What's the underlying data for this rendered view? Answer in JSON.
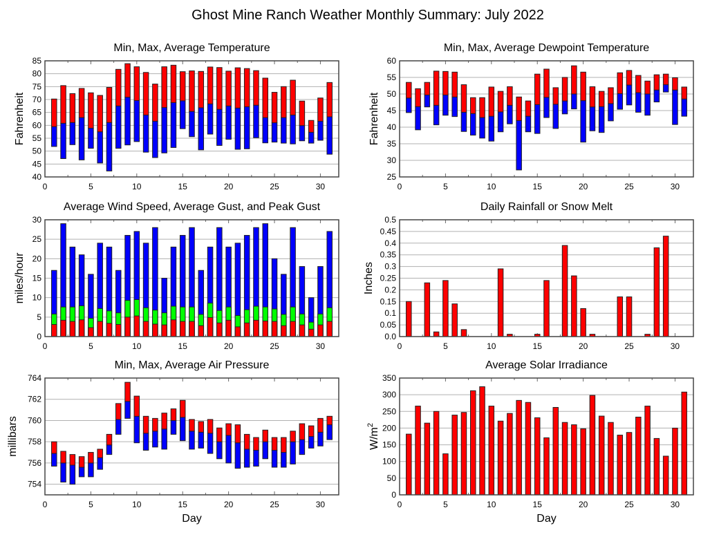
{
  "page": {
    "title": "Ghost Mine Ranch Weather Monthly Summary: July 2022"
  },
  "colors": {
    "red": "#ff0000",
    "blue": "#0000ff",
    "green": "#00ff00"
  },
  "chart_data": [
    {
      "id": "temperature",
      "type": "bar",
      "subtype": "floating-range",
      "title": "Min, Max, Average Temperature",
      "xlabel": "",
      "ylabel": "Fahrenheit",
      "xlim": [
        0,
        32
      ],
      "ylim": [
        40,
        85
      ],
      "xticks": [
        0,
        5,
        10,
        15,
        20,
        25,
        30
      ],
      "yticks": [
        40,
        45,
        50,
        55,
        60,
        65,
        70,
        75,
        80,
        85
      ],
      "grid": true,
      "x": [
        1,
        2,
        3,
        4,
        5,
        6,
        7,
        8,
        9,
        10,
        11,
        12,
        13,
        14,
        15,
        16,
        17,
        18,
        19,
        20,
        21,
        22,
        23,
        24,
        25,
        26,
        27,
        28,
        29,
        30,
        31
      ],
      "series": [
        {
          "name": "Min",
          "values": [
            51.8,
            47.1,
            52.5,
            46.6,
            51.1,
            45.4,
            42.3,
            51.1,
            52.4,
            53.7,
            49.6,
            47.5,
            49.3,
            51.4,
            58.7,
            55.6,
            50.5,
            56.6,
            52.2,
            54.6,
            50.7,
            50.9,
            55.2,
            53.2,
            53.5,
            53.1,
            52.8,
            54.0,
            53.1,
            54.2,
            48.8
          ]
        },
        {
          "name": "Average",
          "values": [
            59.5,
            60.8,
            61.1,
            63.0,
            58.9,
            57.5,
            61.1,
            67.5,
            70.9,
            69.6,
            64.0,
            61.6,
            66.9,
            68.8,
            69.5,
            65.4,
            66.8,
            68.3,
            66.2,
            67.5,
            66.7,
            67.2,
            67.8,
            63.0,
            61.0,
            63.0,
            64.0,
            59.9,
            57.3,
            61.6,
            63.3
          ]
        },
        {
          "name": "Max",
          "values": [
            70.2,
            75.4,
            72.3,
            74.3,
            72.6,
            71.6,
            74.7,
            81.7,
            83.9,
            82.7,
            80.5,
            76.0,
            82.7,
            83.3,
            80.8,
            81.1,
            80.9,
            82.6,
            82.4,
            81.0,
            82.3,
            82.0,
            81.2,
            78.3,
            72.8,
            75.0,
            77.5,
            69.4,
            61.9,
            70.6,
            76.6
          ]
        }
      ]
    },
    {
      "id": "dewpoint",
      "type": "bar",
      "subtype": "floating-range",
      "title": "Min, Max, Average Dewpoint Temperature",
      "xlabel": "",
      "ylabel": "Fahrenheit",
      "xlim": [
        0,
        32
      ],
      "ylim": [
        25,
        60
      ],
      "xticks": [
        0,
        5,
        10,
        15,
        20,
        25,
        30
      ],
      "yticks": [
        25,
        30,
        35,
        40,
        45,
        50,
        55,
        60
      ],
      "grid": true,
      "x": [
        1,
        2,
        3,
        4,
        5,
        6,
        7,
        8,
        9,
        10,
        11,
        12,
        13,
        14,
        15,
        16,
        17,
        18,
        19,
        20,
        21,
        22,
        23,
        24,
        25,
        26,
        27,
        28,
        29,
        30,
        31
      ],
      "series": [
        {
          "name": "Min",
          "values": [
            44.4,
            39.2,
            46.1,
            40.7,
            43.6,
            43.2,
            38.7,
            37.6,
            36.7,
            35.8,
            38.6,
            41.0,
            27.1,
            38.6,
            38.1,
            42.9,
            39.6,
            44.0,
            45.5,
            35.5,
            38.9,
            38.4,
            41.9,
            45.4,
            46.7,
            44.5,
            43.6,
            47.6,
            50.6,
            40.8,
            43.3
          ]
        },
        {
          "name": "Average",
          "values": [
            48.8,
            46.2,
            49.7,
            46.6,
            49.7,
            49.1,
            44.5,
            44.1,
            42.9,
            43.3,
            44.6,
            46.6,
            42.0,
            43.3,
            46.8,
            49.0,
            46.9,
            47.9,
            50.0,
            48.0,
            46.1,
            46.2,
            47.1,
            50.1,
            52.7,
            50.4,
            50.0,
            51.2,
            52.8,
            51.2,
            48.5
          ]
        },
        {
          "name": "Max",
          "values": [
            53.5,
            51.6,
            53.5,
            56.9,
            56.8,
            56.6,
            52.8,
            48.9,
            48.9,
            52.1,
            50.8,
            52.2,
            49.1,
            47.9,
            56.0,
            57.5,
            51.9,
            55.0,
            58.5,
            56.6,
            52.2,
            50.8,
            51.9,
            56.4,
            57.1,
            55.6,
            53.9,
            55.8,
            56.0,
            54.9,
            52.1
          ]
        }
      ]
    },
    {
      "id": "wind",
      "type": "bar",
      "subtype": "overlaid",
      "title": "Average Wind Speed, Average Gust, and Peak Gust",
      "xlabel": "",
      "ylabel": "miles/hour",
      "xlim": [
        0,
        32
      ],
      "ylim": [
        0,
        30
      ],
      "xticks": [
        0,
        5,
        10,
        15,
        20,
        25,
        30
      ],
      "yticks": [
        0,
        5,
        10,
        15,
        20,
        25,
        30
      ],
      "grid": true,
      "x": [
        1,
        2,
        3,
        4,
        5,
        6,
        7,
        8,
        9,
        10,
        11,
        12,
        13,
        14,
        15,
        16,
        17,
        18,
        19,
        20,
        21,
        22,
        23,
        24,
        25,
        26,
        27,
        28,
        29,
        30,
        31
      ],
      "series": [
        {
          "name": "Peak Gust",
          "color": "blue",
          "values": [
            17,
            29,
            23,
            21,
            16,
            24,
            23,
            17,
            26,
            27,
            24,
            28,
            15,
            23,
            26,
            28,
            17,
            23,
            28,
            23,
            24,
            26,
            28,
            29,
            20,
            16,
            28,
            18,
            10,
            18,
            27
          ]
        },
        {
          "name": "Average Gust",
          "color": "green",
          "values": [
            5.8,
            7.6,
            7.6,
            7.9,
            4.7,
            7.2,
            6.6,
            6.1,
            9.3,
            9.5,
            7.4,
            6.8,
            6.1,
            7.8,
            7.6,
            7.6,
            5.7,
            8.6,
            6.7,
            7.6,
            5.4,
            6.9,
            7.8,
            7.6,
            7.1,
            5.7,
            7.6,
            5.8,
            3.7,
            5.8,
            7.4
          ]
        },
        {
          "name": "Average Wind Speed",
          "color": "red",
          "values": [
            3.1,
            4.2,
            3.9,
            4.3,
            2.3,
            3.9,
            3.4,
            3.1,
            5.0,
            5.3,
            3.9,
            3.2,
            3.0,
            4.3,
            3.9,
            3.9,
            2.8,
            4.9,
            3.5,
            4.2,
            2.5,
            3.5,
            4.2,
            4.0,
            3.9,
            2.8,
            3.9,
            3.0,
            1.9,
            3.0,
            3.9
          ]
        }
      ]
    },
    {
      "id": "rainfall",
      "type": "bar",
      "title": "Daily Rainfall or Snow Melt",
      "xlabel": "",
      "ylabel": "Inches",
      "xlim": [
        0,
        32
      ],
      "ylim": [
        0,
        0.5
      ],
      "xticks": [
        0,
        5,
        10,
        15,
        20,
        25,
        30
      ],
      "yticks": [
        0.0,
        0.05,
        0.1,
        0.15,
        0.2,
        0.25,
        0.3,
        0.35,
        0.4,
        0.45,
        0.5
      ],
      "ytick_labels": [
        "0.0",
        "0.05",
        "0.1",
        "0.15",
        "0.2",
        "0.25",
        "0.3",
        "0.35",
        "0.4",
        "0.45",
        "0.5"
      ],
      "grid": true,
      "x": [
        1,
        2,
        3,
        4,
        5,
        6,
        7,
        8,
        9,
        10,
        11,
        12,
        13,
        14,
        15,
        16,
        17,
        18,
        19,
        20,
        21,
        22,
        23,
        24,
        25,
        26,
        27,
        28,
        29,
        30,
        31
      ],
      "values": [
        0.15,
        0,
        0.23,
        0.02,
        0.24,
        0.14,
        0.03,
        0,
        0,
        0,
        0.29,
        0.01,
        0,
        0,
        0.01,
        0.24,
        0,
        0.39,
        0.26,
        0.12,
        0.01,
        0,
        0,
        0.17,
        0.17,
        0,
        0.01,
        0.38,
        0.43,
        0,
        0
      ]
    },
    {
      "id": "pressure",
      "type": "bar",
      "subtype": "floating-range",
      "title": "Min, Max, Average Air Pressure",
      "xlabel": "Day",
      "ylabel": "millibars",
      "xlim": [
        0,
        32
      ],
      "ylim": [
        753,
        764
      ],
      "xticks": [
        0,
        5,
        10,
        15,
        20,
        25,
        30
      ],
      "yticks": [
        754,
        756,
        758,
        760,
        762,
        764
      ],
      "grid": true,
      "x": [
        1,
        2,
        3,
        4,
        5,
        6,
        7,
        8,
        9,
        10,
        11,
        12,
        13,
        14,
        15,
        16,
        17,
        18,
        19,
        20,
        21,
        22,
        23,
        24,
        25,
        26,
        27,
        28,
        29,
        30,
        31
      ],
      "series": [
        {
          "name": "Min",
          "values": [
            755.7,
            754.2,
            754.0,
            754.7,
            754.7,
            755.4,
            756.8,
            758.7,
            760.2,
            757.9,
            757.2,
            757.5,
            757.3,
            758.7,
            758.1,
            757.3,
            757.4,
            756.9,
            756.4,
            756.0,
            755.5,
            755.6,
            755.7,
            756.4,
            755.6,
            755.6,
            755.9,
            756.8,
            757.4,
            757.6,
            758.2
          ]
        },
        {
          "name": "Average",
          "values": [
            756.9,
            756.0,
            755.8,
            755.6,
            756.0,
            756.5,
            757.7,
            760.1,
            761.8,
            760.4,
            758.8,
            759.0,
            759.2,
            760.0,
            760.3,
            759.0,
            758.9,
            758.8,
            758.0,
            758.6,
            757.9,
            757.3,
            757.2,
            758.0,
            757.2,
            757.0,
            758.0,
            758.2,
            758.5,
            758.9,
            759.6
          ]
        },
        {
          "name": "Max",
          "values": [
            758.0,
            757.1,
            756.8,
            756.6,
            757.0,
            757.3,
            758.7,
            761.6,
            763.6,
            762.3,
            760.4,
            760.2,
            760.7,
            761.1,
            761.9,
            760.1,
            759.9,
            760.1,
            759.3,
            759.7,
            759.6,
            758.7,
            758.4,
            759.1,
            758.4,
            758.4,
            759.0,
            759.7,
            759.5,
            760.2,
            760.4
          ]
        }
      ]
    },
    {
      "id": "solar",
      "type": "bar",
      "title": "Average Solar Irradiance",
      "xlabel": "Day",
      "ylabel": "W/m",
      "ylabel_superscript": "2",
      "xlim": [
        0,
        32
      ],
      "ylim": [
        0,
        350
      ],
      "xticks": [
        0,
        5,
        10,
        15,
        20,
        25,
        30
      ],
      "yticks": [
        0,
        50,
        100,
        150,
        200,
        250,
        300,
        350
      ],
      "grid": true,
      "x": [
        1,
        2,
        3,
        4,
        5,
        6,
        7,
        8,
        9,
        10,
        11,
        12,
        13,
        14,
        15,
        16,
        17,
        18,
        19,
        20,
        21,
        22,
        23,
        24,
        25,
        26,
        27,
        28,
        29,
        30,
        31
      ],
      "values": [
        182,
        266,
        215,
        250,
        123,
        239,
        247,
        312,
        324,
        266,
        221,
        244,
        283,
        277,
        231,
        171,
        262,
        217,
        210,
        198,
        298,
        236,
        217,
        179,
        187,
        233,
        266,
        169,
        116,
        200,
        308
      ]
    }
  ]
}
